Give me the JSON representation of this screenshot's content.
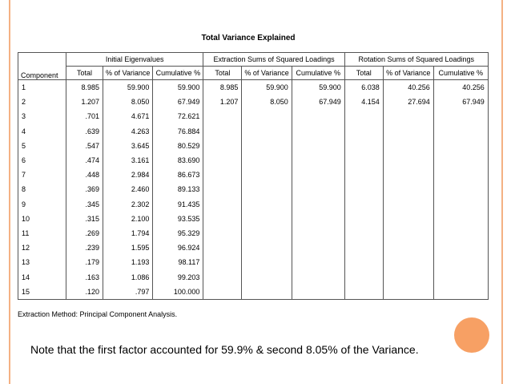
{
  "table": {
    "title": "Total Variance Explained",
    "component_header": "Component",
    "groups": [
      "Initial Eigenvalues",
      "Extraction Sums of Squared Loadings",
      "Rotation Sums of Squared Loadings"
    ],
    "columns": [
      "Total",
      "% of Variance",
      "Cumulative %",
      "Total",
      "% of Variance",
      "Cumulative %",
      "Total",
      "% of Variance",
      "Cumulative %"
    ],
    "rows": [
      [
        "1",
        "8.985",
        "59.900",
        "59.900",
        "8.985",
        "59.900",
        "59.900",
        "6.038",
        "40.256",
        "40.256"
      ],
      [
        "2",
        "1.207",
        "8.050",
        "67.949",
        "1.207",
        "8.050",
        "67.949",
        "4.154",
        "27.694",
        "67.949"
      ],
      [
        "3",
        ".701",
        "4.671",
        "72.621"
      ],
      [
        "4",
        ".639",
        "4.263",
        "76.884"
      ],
      [
        "5",
        ".547",
        "3.645",
        "80.529"
      ],
      [
        "6",
        ".474",
        "3.161",
        "83.690"
      ],
      [
        "7",
        ".448",
        "2.984",
        "86.673"
      ],
      [
        "8",
        ".369",
        "2.460",
        "89.133"
      ],
      [
        "9",
        ".345",
        "2.302",
        "91.435"
      ],
      [
        "10",
        ".315",
        "2.100",
        "93.535"
      ],
      [
        "11",
        ".269",
        "1.794",
        "95.329"
      ],
      [
        "12",
        ".239",
        "1.595",
        "96.924"
      ],
      [
        "13",
        ".179",
        "1.193",
        "98.117"
      ],
      [
        "14",
        ".163",
        "1.086",
        "99.203"
      ],
      [
        "15",
        ".120",
        ".797",
        "100.000"
      ]
    ],
    "footnote": "Extraction Method: Principal Component Analysis."
  },
  "note": "Note that the first factor accounted for 59.9% &  second  8.05% of the Variance."
}
